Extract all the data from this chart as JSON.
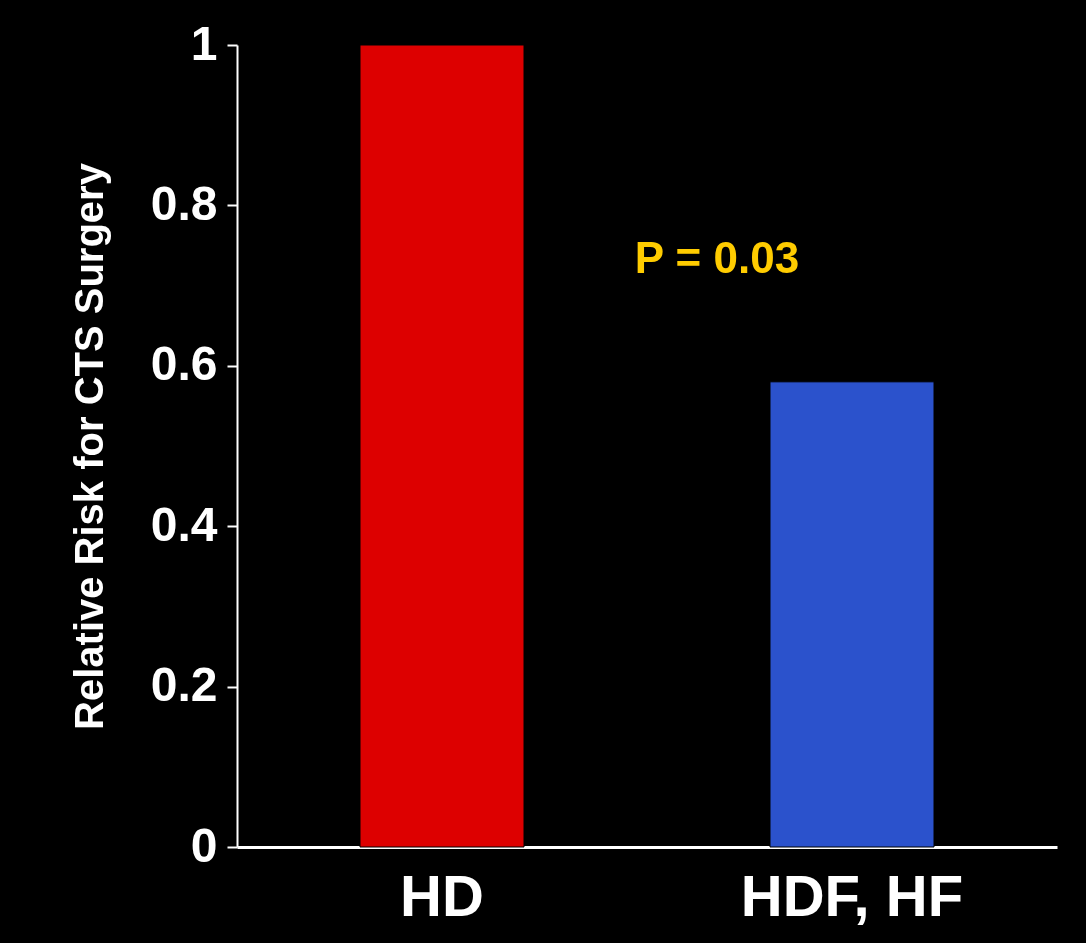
{
  "chart_data": {
    "type": "bar",
    "ylabel": "Relative Risk for CTS Surgery",
    "categories": [
      "HD",
      "HDF, HF"
    ],
    "values": [
      1,
      0.58
    ],
    "colors": [
      "#dd0000",
      "#2b52cc"
    ],
    "ylim": [
      0,
      1
    ],
    "yticks": [
      0,
      0.2,
      0.4,
      0.6,
      0.8,
      1
    ],
    "grid": false,
    "legend": false,
    "annotations": [
      "P = 0.03"
    ]
  }
}
